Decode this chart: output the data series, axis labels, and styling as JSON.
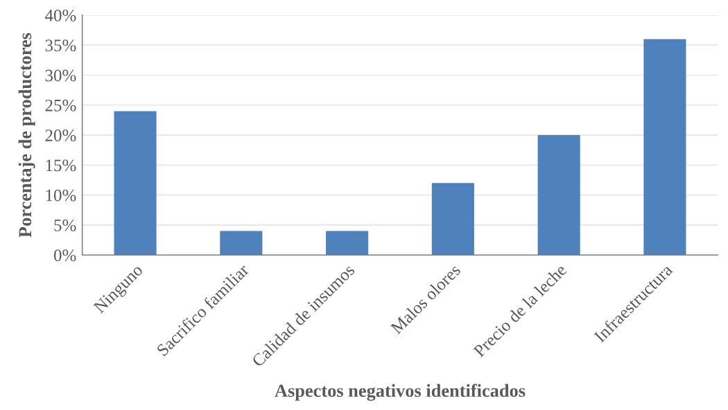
{
  "chart_data": {
    "type": "bar",
    "xlabel": "Aspectos negativos identificados",
    "ylabel": "Porcentaje de productores",
    "categories": [
      "Ninguno",
      "Sacrifico familiar",
      "Calidad de insumos",
      "Malos olores",
      "Precio de la leche",
      "Infraestructura"
    ],
    "values": [
      24,
      4,
      4,
      12,
      20,
      36
    ],
    "color": "#4f81bd",
    "ylim": [
      0,
      40
    ],
    "yticks": [
      {
        "value": 0,
        "label": "0%"
      },
      {
        "value": 5,
        "label": "5%"
      },
      {
        "value": 10,
        "label": "10%"
      },
      {
        "value": 15,
        "label": "15%"
      },
      {
        "value": 20,
        "label": "20%"
      },
      {
        "value": 25,
        "label": "25%"
      },
      {
        "value": 30,
        "label": "30%"
      },
      {
        "value": 35,
        "label": "35%"
      },
      {
        "value": 40,
        "label": "40%"
      }
    ],
    "grid": "y",
    "legend": false
  }
}
